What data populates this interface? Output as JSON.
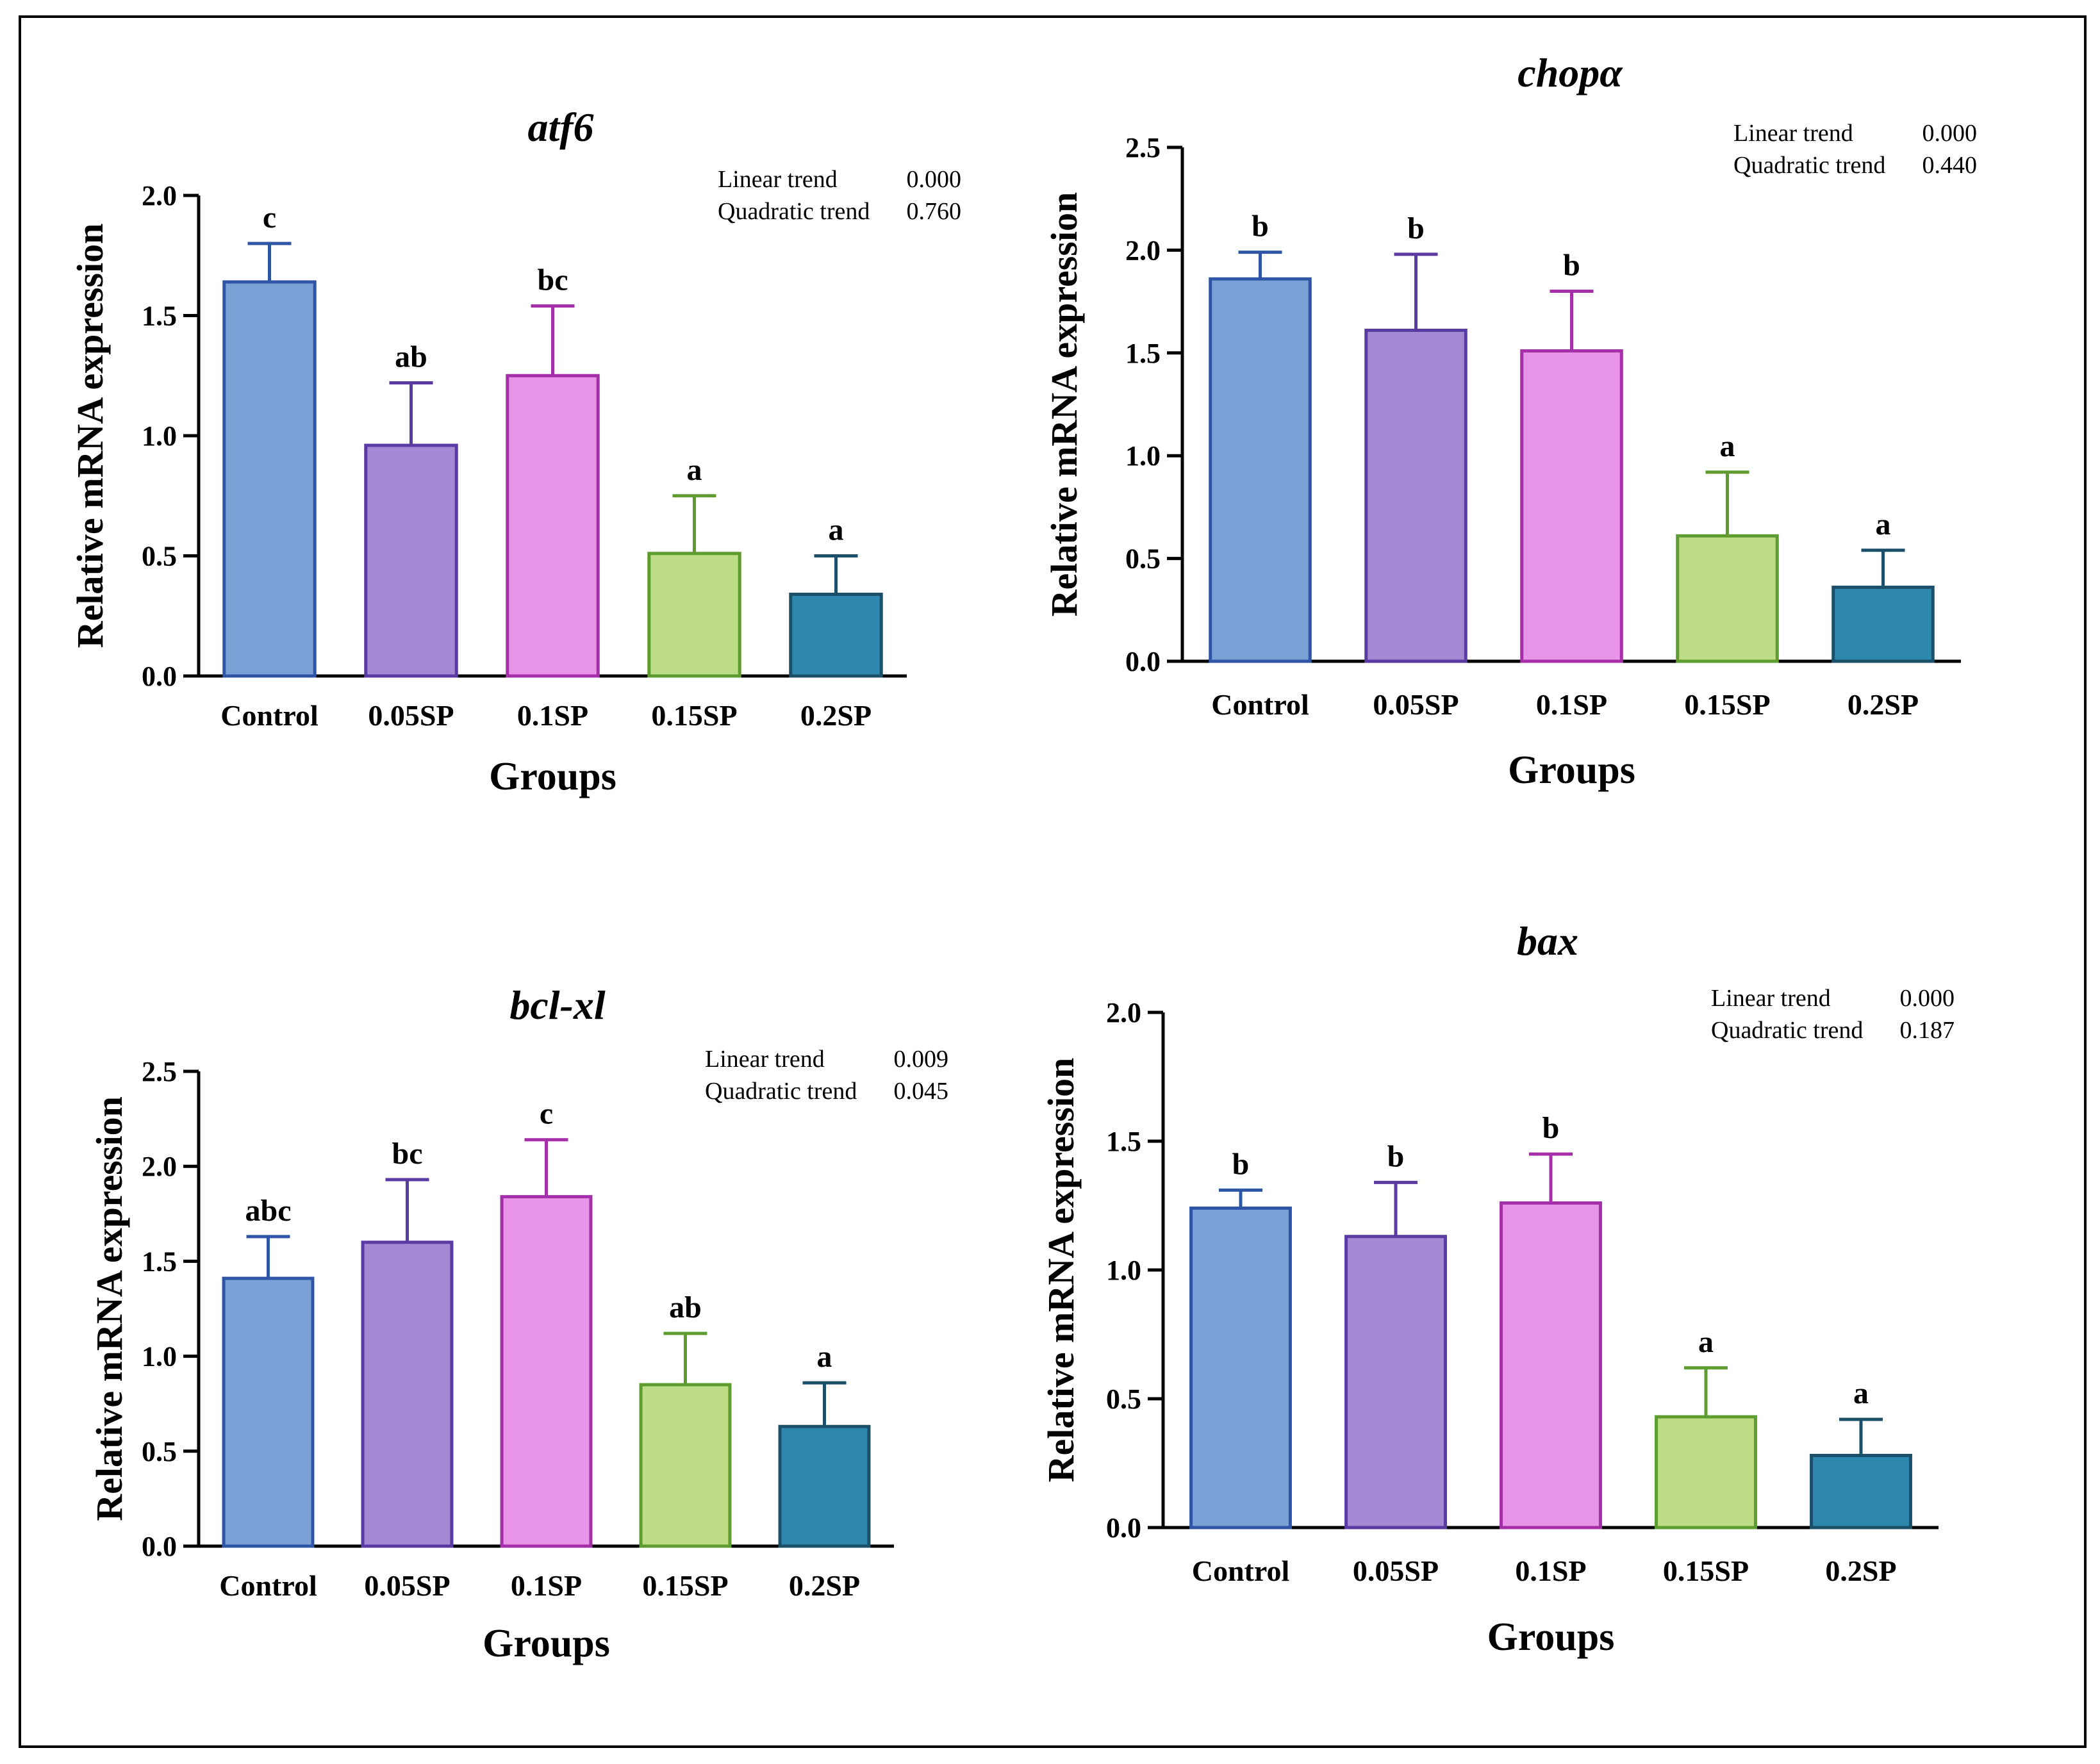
{
  "groups": [
    "Control",
    "0.05SP",
    "0.1SP",
    "0.15SP",
    "0.2SP"
  ],
  "colors": {
    "fills": [
      "#7ba0d6",
      "#a48ad4",
      "#e894e8",
      "#bcdd85",
      "#2e88ad"
    ],
    "strokes": [
      "#2f56a6",
      "#5a3aa3",
      "#a42fa8",
      "#5f9c2f",
      "#1b4f6a"
    ],
    "axis": "#000000",
    "frame": "#000000"
  },
  "chart_data": [
    {
      "type": "bar",
      "title": "atf6",
      "xlabel": "Groups",
      "ylabel": "Relative mRNA expression",
      "categories": [
        "Control",
        "0.05SP",
        "0.1SP",
        "0.15SP",
        "0.2SP"
      ],
      "values": [
        1.64,
        0.96,
        1.25,
        0.51,
        0.34
      ],
      "errors": [
        0.16,
        0.26,
        0.29,
        0.24,
        0.16
      ],
      "letters": [
        "c",
        "ab",
        "bc",
        "a",
        "a"
      ],
      "ylim": [
        0,
        2.0
      ],
      "yticks": [
        "0.0",
        "0.5",
        "1.0",
        "1.5",
        "2.0"
      ],
      "trend": {
        "linear_label": "Linear trend",
        "linear_value": "0.000",
        "quadratic_label": "Quadratic trend",
        "quadratic_value": "0.760"
      }
    },
    {
      "type": "bar",
      "title": "chopα",
      "xlabel": "Groups",
      "ylabel": "Relative mRNA expression",
      "categories": [
        "Control",
        "0.05SP",
        "0.1SP",
        "0.15SP",
        "0.2SP"
      ],
      "values": [
        1.86,
        1.61,
        1.51,
        0.61,
        0.36
      ],
      "errors": [
        0.13,
        0.37,
        0.29,
        0.31,
        0.18
      ],
      "letters": [
        "b",
        "b",
        "b",
        "a",
        "a"
      ],
      "ylim": [
        0,
        2.5
      ],
      "yticks": [
        "0.0",
        "0.5",
        "1.0",
        "1.5",
        "2.0",
        "2.5"
      ],
      "trend": {
        "linear_label": "Linear trend",
        "linear_value": "0.000",
        "quadratic_label": "Quadratic trend",
        "quadratic_value": "0.440"
      }
    },
    {
      "type": "bar",
      "title": "bcl-xl",
      "xlabel": "Groups",
      "ylabel": "Relative mRNA expression",
      "categories": [
        "Control",
        "0.05SP",
        "0.1SP",
        "0.15SP",
        "0.2SP"
      ],
      "values": [
        1.41,
        1.6,
        1.84,
        0.85,
        0.63
      ],
      "errors": [
        0.22,
        0.33,
        0.3,
        0.27,
        0.23
      ],
      "letters": [
        "abc",
        "bc",
        "c",
        "ab",
        "a"
      ],
      "ylim": [
        0,
        2.5
      ],
      "yticks": [
        "0.0",
        "0.5",
        "1.0",
        "1.5",
        "2.0",
        "2.5"
      ],
      "trend": {
        "linear_label": "Linear trend",
        "linear_value": "0.009",
        "quadratic_label": "Quadratic trend",
        "quadratic_value": "0.045"
      }
    },
    {
      "type": "bar",
      "title": "bax",
      "xlabel": "Groups",
      "ylabel": "Relative mRNA expression",
      "categories": [
        "Control",
        "0.05SP",
        "0.1SP",
        "0.15SP",
        "0.2SP"
      ],
      "values": [
        1.24,
        1.13,
        1.26,
        0.43,
        0.28
      ],
      "errors": [
        0.07,
        0.21,
        0.19,
        0.19,
        0.14
      ],
      "letters": [
        "b",
        "b",
        "b",
        "a",
        "a"
      ],
      "ylim": [
        0,
        2.0
      ],
      "yticks": [
        "0.0",
        "0.5",
        "1.0",
        "1.5",
        "2.0"
      ],
      "trend": {
        "linear_label": "Linear trend",
        "linear_value": "0.000",
        "quadratic_label": "Quadratic trend",
        "quadratic_value": "0.187"
      }
    }
  ]
}
